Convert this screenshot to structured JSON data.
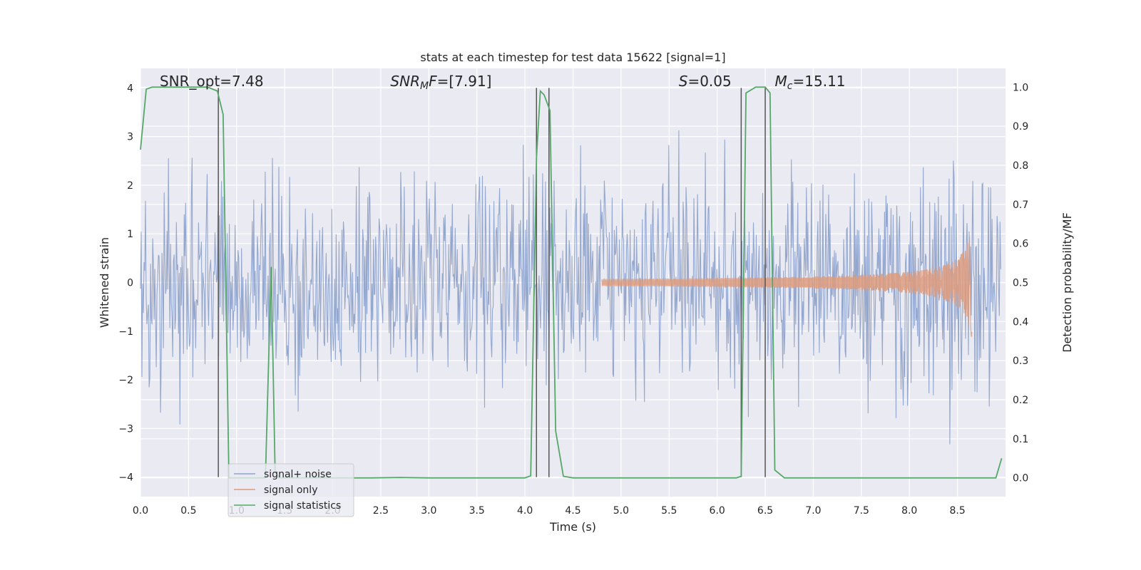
{
  "chart_data": {
    "type": "line",
    "title": "stats at each timestep for test data 15622 [signal=1]",
    "xlabel": "Time (s)",
    "ylabel": "Whitened strain",
    "y2label": "Detection probability/MF",
    "xlim": [
      0,
      9.0
    ],
    "ylim": [
      -4.4,
      4.4
    ],
    "y2lim": [
      -0.048,
      1.048
    ],
    "xticks": [
      "0.0",
      "0.5",
      "1.0",
      "1.5",
      "2.0",
      "2.5",
      "3.0",
      "3.5",
      "4.0",
      "4.5",
      "5.0",
      "5.5",
      "6.0",
      "6.5",
      "7.0",
      "7.5",
      "8.0",
      "8.5"
    ],
    "yticks": [
      "−4",
      "−3",
      "−2",
      "−1",
      "0",
      "1",
      "2",
      "3",
      "4"
    ],
    "y2ticks": [
      "0.0",
      "0.1",
      "0.2",
      "0.3",
      "0.4",
      "0.5",
      "0.6",
      "0.7",
      "0.8",
      "0.9",
      "1.0"
    ],
    "grid": true,
    "legend_position": "lower-left",
    "annotations": [
      {
        "text": "SNR_opt=7.48",
        "x": 0.2
      },
      {
        "text": "SNR",
        "sub": "M",
        "after": "F=[7.91]",
        "x": 2.6
      },
      {
        "text": "S",
        "after": "=0.05",
        "x": 5.6
      },
      {
        "text": "M",
        "sub": "c",
        "after": "=15.11",
        "x": 6.6
      }
    ],
    "series": [
      {
        "name": "signal+ noise",
        "color": "#8fa3cc",
        "kind": "noise",
        "n_points": 1200,
        "amplitude_sigma": 1.0
      },
      {
        "name": "signal only",
        "color": "#dd9b7c",
        "kind": "chirp",
        "t_start": 4.8,
        "t_merge": 8.65,
        "peak": 1.25
      },
      {
        "name": "signal statistics",
        "color": "#55a868",
        "kind": "probability",
        "x": [
          0.0,
          0.06,
          0.12,
          0.2,
          0.3,
          0.4,
          0.5,
          0.6,
          0.7,
          0.8,
          0.86,
          0.92,
          1.0,
          1.1,
          1.2,
          1.3,
          1.36,
          1.4,
          1.44,
          1.5,
          1.6,
          1.8,
          2.0,
          2.4,
          2.7,
          3.0,
          3.5,
          4.0,
          4.06,
          4.12,
          4.16,
          4.2,
          4.26,
          4.32,
          4.4,
          4.5,
          4.8,
          5.2,
          5.6,
          6.0,
          6.2,
          6.25,
          6.3,
          6.4,
          6.5,
          6.55,
          6.6,
          6.7,
          7.0,
          7.5,
          8.0,
          8.5,
          8.9,
          8.96
        ],
        "y": [
          0.84,
          0.995,
          1.0,
          1.0,
          1.0,
          1.0,
          1.0,
          1.0,
          1.0,
          0.99,
          0.93,
          0.0,
          0.0,
          0.0,
          0.0,
          0.0,
          0.54,
          0.02,
          0.0,
          0.0,
          0.0,
          0.0,
          0.0,
          0.0,
          0.001,
          0.0,
          0.0,
          0.0,
          0.005,
          0.82,
          0.99,
          0.98,
          0.94,
          0.12,
          0.004,
          0.0,
          0.0,
          0.0,
          0.0,
          0.0,
          0.0,
          0.004,
          0.985,
          1.0,
          1.0,
          0.985,
          0.02,
          0.0,
          0.0,
          0.0,
          0.0,
          0.0,
          0.0,
          0.05
        ]
      },
      {
        "name": "",
        "color": "#555555",
        "kind": "vlines",
        "x": [
          0.81,
          4.12,
          4.25,
          6.25,
          6.5
        ]
      }
    ]
  }
}
